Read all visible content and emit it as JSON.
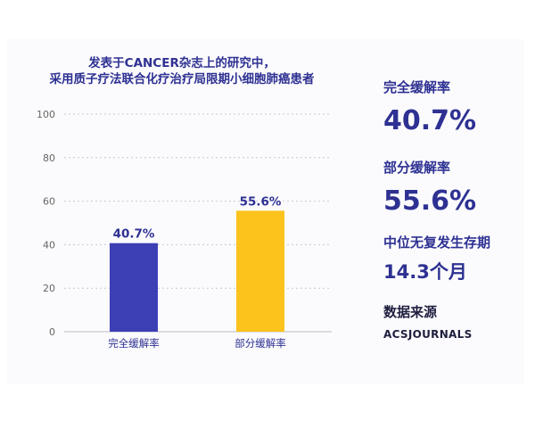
{
  "title_lines": [
    "发表于CANCER杂志上的研究中，",
    "采用质子疗法联合化疗治疗局限期小细胞肺癌患者"
  ],
  "chart_data": {
    "type": "bar",
    "categories": [
      "完全缓解率",
      "部分缓解率"
    ],
    "values": [
      40.7,
      55.6
    ],
    "data_labels": [
      "40.7%",
      "55.6%"
    ],
    "ylim": [
      0,
      100
    ],
    "yticks": [
      "0",
      "20",
      "40",
      "60",
      "80",
      "100"
    ],
    "grid": "dotted horizontal",
    "colors": [
      "#3d3fb5",
      "#fbc31c"
    ]
  },
  "stats": [
    {
      "label": "完全缓解率",
      "value": "40.7%"
    },
    {
      "label": "部分缓解率",
      "value": "55.6%"
    },
    {
      "label": "中位无复发生存期",
      "value": "14.3个月"
    }
  ],
  "source": {
    "label": "数据来源",
    "value": "ACSJOURNALS"
  },
  "colors": {
    "text": "#2e3192",
    "grid": "#c8c8d4",
    "axis_text": "#666666"
  }
}
